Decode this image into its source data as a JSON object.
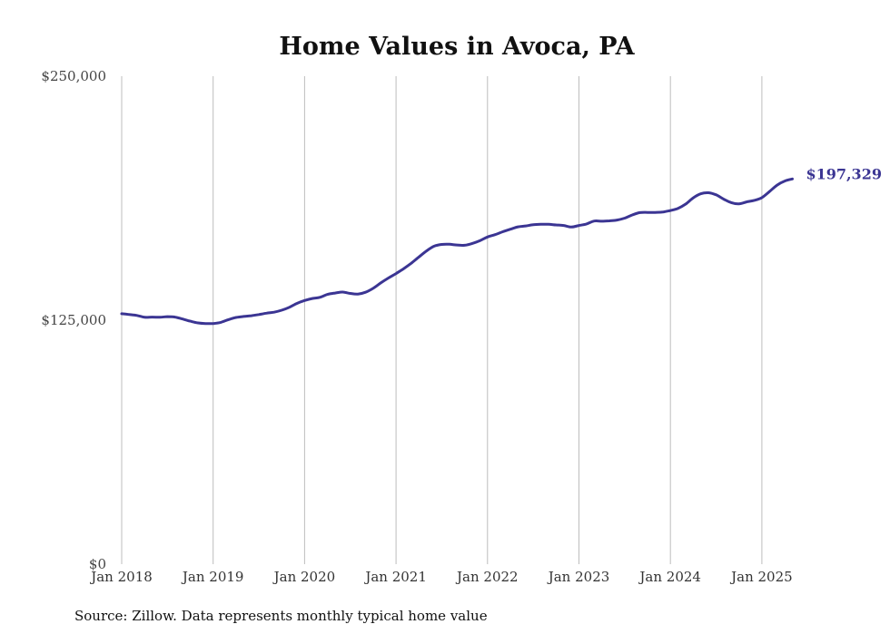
{
  "chart_data": {
    "type": "line",
    "title": "Home Values in Avoca, PA",
    "source": "Source: Zillow. Data represents monthly typical home value",
    "ylim": [
      0,
      250000
    ],
    "y_ticks": [
      {
        "value": 0,
        "label": "$0"
      },
      {
        "value": 125000,
        "label": "$125,000"
      },
      {
        "value": 250000,
        "label": "$250,000"
      }
    ],
    "x_ticks": [
      {
        "year": 2018,
        "label": "Jan 2018"
      },
      {
        "year": 2019,
        "label": "Jan 2019"
      },
      {
        "year": 2020,
        "label": "Jan 2020"
      },
      {
        "year": 2021,
        "label": "Jan 2021"
      },
      {
        "year": 2022,
        "label": "Jan 2022"
      },
      {
        "year": 2023,
        "label": "Jan 2023"
      },
      {
        "year": 2024,
        "label": "Jan 2024"
      },
      {
        "year": 2025,
        "label": "Jan 2025"
      }
    ],
    "xlim": [
      "2018-01",
      "2025-05"
    ],
    "grid": "vertical",
    "line_color": "#3b3593",
    "end_label": "$197,329",
    "series": [
      {
        "x": [
          "2018-01",
          "2018-02",
          "2018-03",
          "2018-04",
          "2018-05",
          "2018-06",
          "2018-07",
          "2018-08",
          "2018-09",
          "2018-10",
          "2018-11",
          "2018-12",
          "2019-01",
          "2019-02",
          "2019-03",
          "2019-04",
          "2019-05",
          "2019-06",
          "2019-07",
          "2019-08",
          "2019-09",
          "2019-10",
          "2019-11",
          "2019-12",
          "2020-01",
          "2020-02",
          "2020-03",
          "2020-04",
          "2020-05",
          "2020-06",
          "2020-07",
          "2020-08",
          "2020-09",
          "2020-10",
          "2020-11",
          "2020-12",
          "2021-01",
          "2021-02",
          "2021-03",
          "2021-04",
          "2021-05",
          "2021-06",
          "2021-07",
          "2021-08",
          "2021-09",
          "2021-10",
          "2021-11",
          "2021-12",
          "2022-01",
          "2022-02",
          "2022-03",
          "2022-04",
          "2022-05",
          "2022-06",
          "2022-07",
          "2022-08",
          "2022-09",
          "2022-10",
          "2022-11",
          "2022-12",
          "2023-01",
          "2023-02",
          "2023-03",
          "2023-04",
          "2023-05",
          "2023-06",
          "2023-07",
          "2023-08",
          "2023-09",
          "2023-10",
          "2023-11",
          "2023-12",
          "2024-01",
          "2024-02",
          "2024-03",
          "2024-04",
          "2024-05",
          "2024-06",
          "2024-07",
          "2024-08",
          "2024-09",
          "2024-10",
          "2024-11",
          "2024-12",
          "2025-01",
          "2025-02",
          "2025-03",
          "2025-04",
          "2025-05"
        ],
        "values": [
          128300,
          127900,
          127400,
          126500,
          126600,
          126500,
          126800,
          126600,
          125600,
          124500,
          123600,
          123300,
          123300,
          123900,
          125300,
          126400,
          126900,
          127300,
          127900,
          128600,
          129100,
          130100,
          131600,
          133600,
          135100,
          136100,
          136700,
          138200,
          138900,
          139400,
          138700,
          138400,
          139300,
          141300,
          144100,
          146600,
          148900,
          151400,
          154200,
          157400,
          160500,
          162900,
          163800,
          163900,
          163500,
          163400,
          164300,
          165700,
          167600,
          168800,
          170300,
          171600,
          172800,
          173300,
          173900,
          174100,
          174100,
          173800,
          173500,
          172700,
          173500,
          174300,
          175800,
          175700,
          175900,
          176300,
          177300,
          178900,
          180100,
          180200,
          180200,
          180400,
          181200,
          182300,
          184500,
          187700,
          189800,
          190300,
          189200,
          187000,
          185200,
          184600,
          185600,
          186400,
          187800,
          190900,
          194200,
          196300,
          197329
        ]
      }
    ]
  }
}
